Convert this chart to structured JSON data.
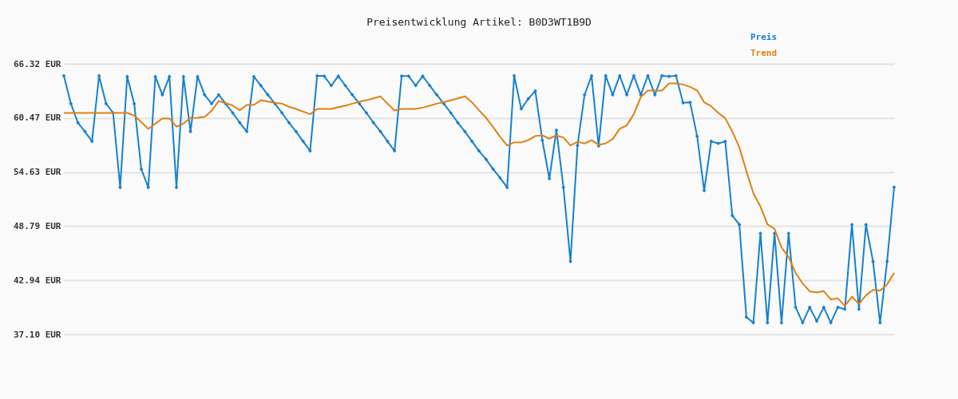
{
  "chart_data": {
    "type": "line",
    "title": "Preisentwicklung Artikel: B0D3WT1B9D",
    "categories": [
      null,
      null,
      null,
      null,
      null,
      null,
      null,
      null,
      null,
      null,
      null,
      null,
      null,
      null,
      null,
      null,
      null,
      null,
      null,
      null,
      null,
      null,
      null,
      null,
      null,
      null,
      null,
      null,
      null,
      null,
      null,
      null,
      null,
      null,
      null,
      null,
      null,
      null,
      null,
      null,
      null,
      null,
      null,
      null,
      null,
      null,
      null,
      null,
      null,
      null,
      null,
      null,
      null,
      null,
      null,
      null,
      null,
      null,
      null,
      null,
      null,
      null,
      null,
      null,
      null,
      null,
      null,
      null,
      null,
      null,
      null,
      null,
      null,
      null,
      null,
      null,
      null,
      null,
      null,
      null,
      null,
      null,
      null,
      null,
      null,
      null,
      null,
      null,
      null,
      null,
      null,
      null,
      null,
      null,
      null,
      null,
      null,
      null,
      null,
      null,
      null,
      null,
      null,
      null,
      null,
      null,
      null,
      null,
      null,
      null,
      null,
      null,
      null,
      null,
      null,
      null,
      null,
      null,
      null
    ],
    "series": [
      {
        "name": "Preis",
        "color": "#1681d0",
        "marker": "diamond",
        "values": [
          65.03,
          62.02,
          59.96,
          59.01,
          57.95,
          65.03,
          62.02,
          61.02,
          52.97,
          64.95,
          62.02,
          54.95,
          52.97,
          64.95,
          62.97,
          64.95,
          52.97,
          64.95,
          59.01,
          64.95,
          62.97,
          62.02,
          62.97,
          62.02,
          61.02,
          59.96,
          59.01,
          64.95,
          63.97,
          62.97,
          62.02,
          61.02,
          59.96,
          59.01,
          57.95,
          56.92,
          65.03,
          65.0,
          63.97,
          65.0,
          63.97,
          62.97,
          62.02,
          61.02,
          59.96,
          59.01,
          57.95,
          56.92,
          65.0,
          65.0,
          63.97,
          65.0,
          63.97,
          62.97,
          62.02,
          61.02,
          59.96,
          59.01,
          57.95,
          56.92,
          56.01,
          54.95,
          54.0,
          52.97,
          65.03,
          61.45,
          62.54,
          63.4,
          58.07,
          53.91,
          59.16,
          52.97,
          44.97,
          57.5,
          62.97,
          65.03,
          57.44,
          65.03,
          62.97,
          65.03,
          62.97,
          65.03,
          62.97,
          65.03,
          62.97,
          65.03,
          64.97,
          65.03,
          62.11,
          62.17,
          58.5,
          52.63,
          57.95,
          57.72,
          57.95,
          49.93,
          48.96,
          38.96,
          38.36,
          48.01,
          38.36,
          48.01,
          38.36,
          48.01,
          40.02,
          38.36,
          40.02,
          38.53,
          40.02,
          38.36,
          40.02,
          39.82,
          48.96,
          39.82,
          48.96,
          44.97,
          38.36,
          44.97,
          53.0
        ]
      },
      {
        "name": "Trend",
        "color": "#e0800f",
        "marker": "none",
        "values": [
          61.02,
          61.02,
          61.02,
          61.02,
          61.02,
          61.02,
          61.02,
          61.02,
          61.02,
          61.02,
          60.73,
          60.02,
          59.3,
          59.87,
          60.42,
          60.42,
          59.53,
          59.87,
          60.48,
          60.5,
          60.59,
          61.25,
          62.31,
          62.08,
          61.82,
          61.31,
          61.88,
          61.88,
          62.39,
          62.25,
          62.11,
          62.02,
          61.68,
          61.45,
          61.16,
          60.88,
          61.45,
          61.45,
          61.45,
          61.65,
          61.79,
          62.02,
          62.22,
          62.39,
          62.59,
          62.8,
          62.02,
          61.28,
          61.45,
          61.45,
          61.45,
          61.59,
          61.79,
          62.02,
          62.19,
          62.37,
          62.59,
          62.8,
          62.17,
          61.31,
          60.5,
          59.5,
          58.44,
          57.5,
          57.84,
          57.84,
          58.07,
          58.53,
          58.59,
          58.24,
          58.59,
          58.36,
          57.5,
          57.9,
          57.72,
          58.07,
          57.58,
          57.72,
          58.21,
          59.3,
          59.67,
          60.88,
          62.74,
          63.43,
          63.43,
          63.43,
          64.2,
          64.2,
          64.09,
          63.83,
          63.45,
          62.17,
          61.74,
          61.02,
          60.45,
          59.01,
          57.3,
          54.72,
          52.34,
          50.91,
          48.99,
          48.5,
          46.49,
          45.46,
          43.74,
          42.6,
          41.74,
          41.62,
          41.77,
          40.88,
          40.99,
          40.19,
          41.17,
          40.39,
          41.31,
          41.91,
          41.82,
          42.48,
          43.74
        ]
      }
    ],
    "ylim": [
      37.1,
      66.32
    ],
    "yticks": [
      {
        "value": 66.32,
        "label": "66.32 EUR"
      },
      {
        "value": 60.47,
        "label": "60.47 EUR"
      },
      {
        "value": 54.63,
        "label": "54.63 EUR"
      },
      {
        "value": 48.79,
        "label": "48.79 EUR"
      },
      {
        "value": 42.94,
        "label": "42.94 EUR"
      },
      {
        "value": 37.1,
        "label": "37.10 EUR"
      }
    ],
    "tick_labels": "y",
    "grid": "y",
    "legend": "top right",
    "line_style": "solid"
  }
}
